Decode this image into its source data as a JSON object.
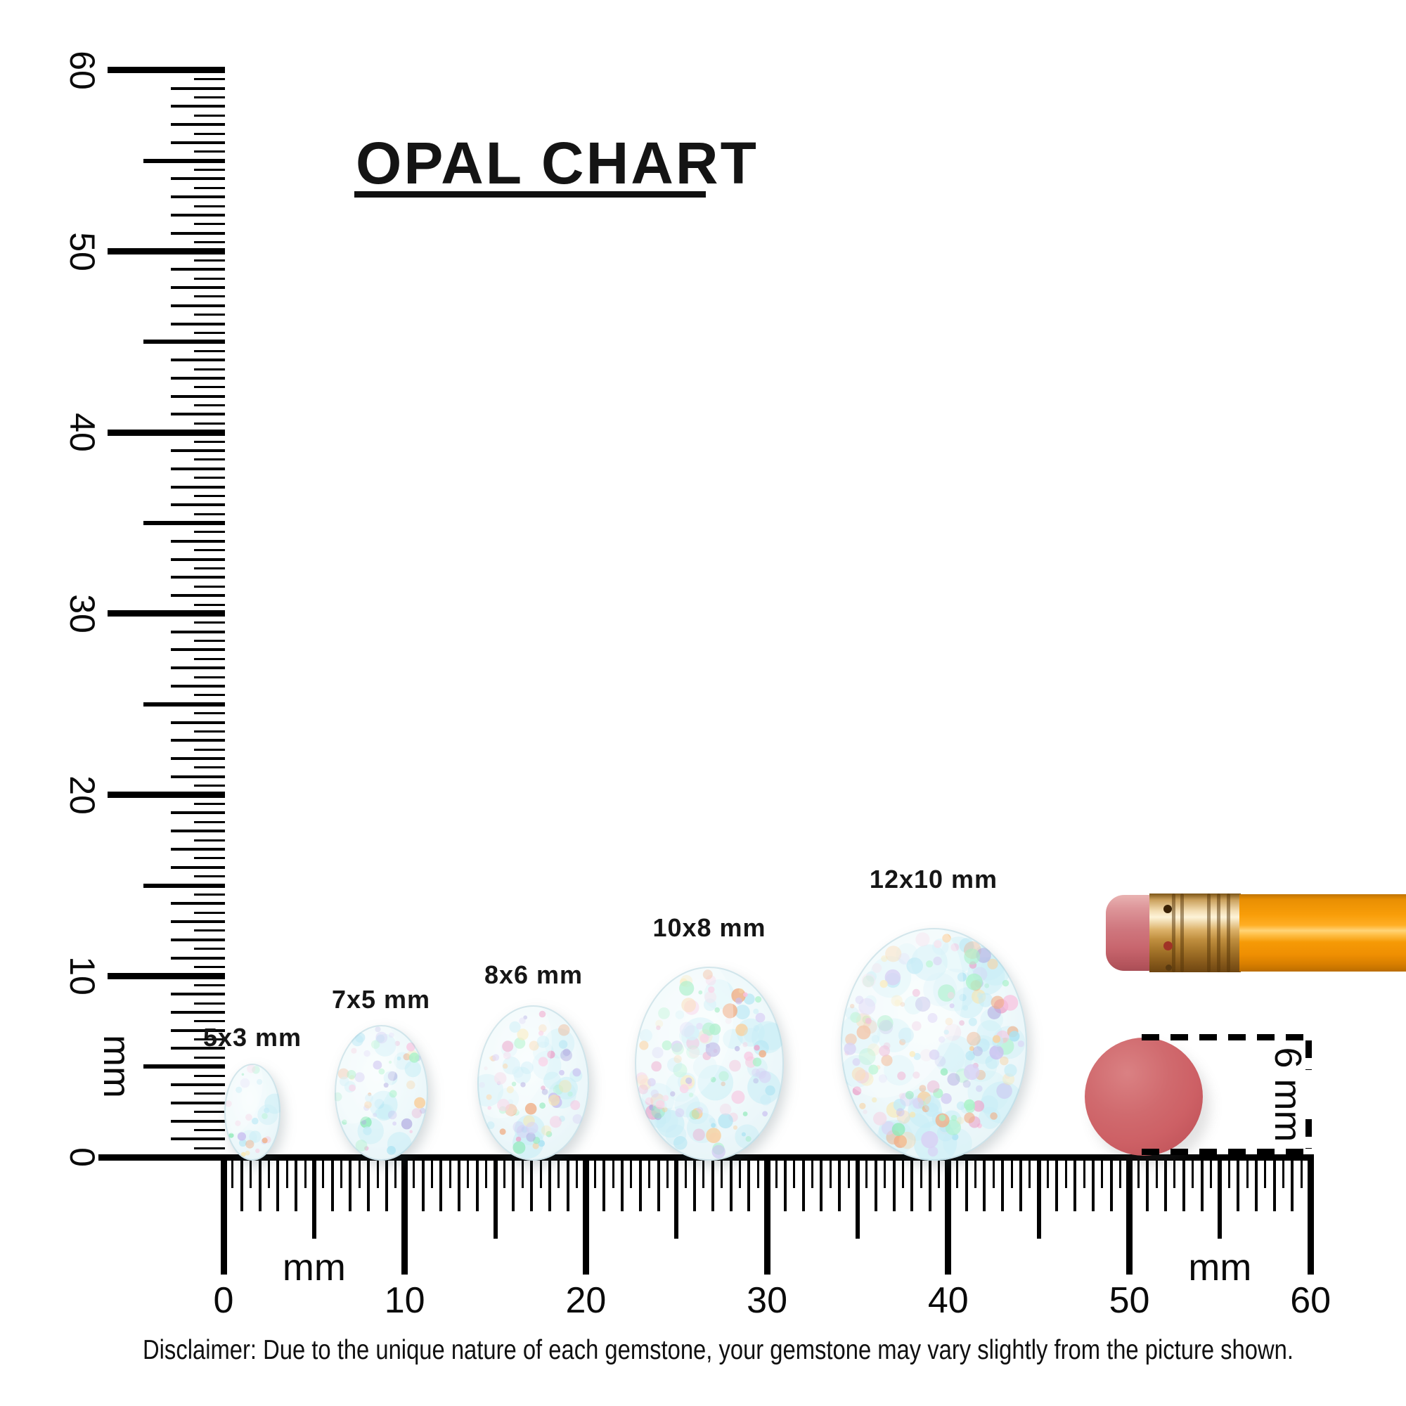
{
  "title": "OPAL CHART",
  "disclaimer": "Disclaimer: Due to the unique nature of each gemstone, your gemstone may vary slightly from the picture shown.",
  "rulers": {
    "horizontal": {
      "labels": [
        "0",
        "10",
        "20",
        "30",
        "40",
        "50",
        "60"
      ],
      "unit_labels": [
        "mm",
        "mm"
      ],
      "range_mm": [
        0,
        60
      ],
      "minor_step_mm": 0.5
    },
    "vertical": {
      "labels": [
        "60",
        "50",
        "40",
        "30",
        "20",
        "10",
        "0"
      ],
      "unit_label": "mm",
      "range_mm": [
        0,
        60
      ],
      "minor_step_mm": 0.5
    }
  },
  "opals": [
    {
      "label": "5x3 mm",
      "width_mm": 3,
      "height_mm": 5,
      "position_mm": 1.6
    },
    {
      "label": "7x5 mm",
      "width_mm": 5,
      "height_mm": 7,
      "position_mm": 8.7
    },
    {
      "label": "8x6 mm",
      "width_mm": 6,
      "height_mm": 8,
      "position_mm": 17.1
    },
    {
      "label": "10x8 mm",
      "width_mm": 8,
      "height_mm": 10,
      "position_mm": 26.8
    },
    {
      "label": "12x10 mm",
      "width_mm": 10,
      "height_mm": 12,
      "position_mm": 39.2
    }
  ],
  "measure_box": {
    "label": "6 mm"
  },
  "colors": {
    "ink": "#0a0a0a",
    "eraser_dot": "#cd6065",
    "pencil_body": "#f89d08",
    "pencil_ferrule": "#c08f3f",
    "pencil_eraser": "#cf777e",
    "opal_base": "#eef8fa",
    "opal_speckles": [
      "#ffb45e",
      "#f07f3c",
      "#ff9ccb",
      "#e873ae",
      "#a9e3f2",
      "#7ed3ec",
      "#b09ae8",
      "#8a7ad0",
      "#7beea6",
      "#52e08e",
      "#ffd978",
      "#f6c2d9",
      "#c9b4f0"
    ]
  }
}
